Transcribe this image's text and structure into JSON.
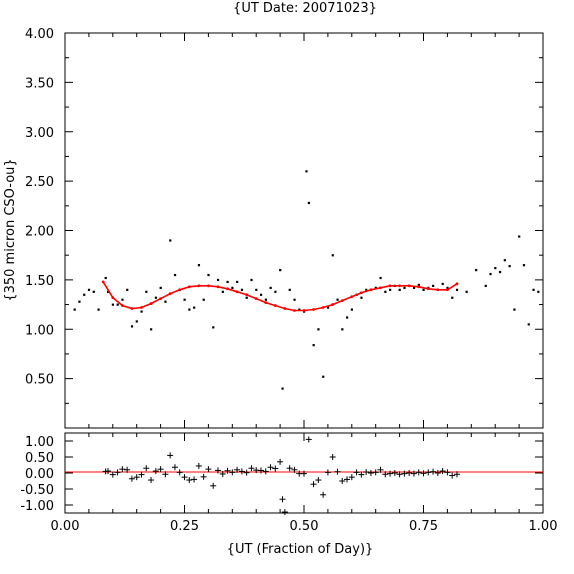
{
  "chart_data": [
    {
      "type": "scatter",
      "panel": "main",
      "title": "{UT Date: 20071023}",
      "ylabel": "{350 micron CSO-ou}",
      "xlim": [
        0,
        1
      ],
      "ylim": [
        0,
        4
      ],
      "yticks": [
        "0.50",
        "1.00",
        "1.50",
        "2.00",
        "2.50",
        "3.00",
        "3.50",
        "4.00"
      ],
      "grid": false,
      "series": [
        {
          "color": "#000000",
          "marker": "dot",
          "x": [
            0.02,
            0.03,
            0.04,
            0.05,
            0.06,
            0.07,
            0.085,
            0.09,
            0.1,
            0.11,
            0.12,
            0.13,
            0.14,
            0.15,
            0.16,
            0.17,
            0.18,
            0.19,
            0.2,
            0.21,
            0.22,
            0.23,
            0.24,
            0.25,
            0.26,
            0.27,
            0.28,
            0.29,
            0.3,
            0.31,
            0.32,
            0.33,
            0.34,
            0.35,
            0.36,
            0.37,
            0.38,
            0.39,
            0.4,
            0.41,
            0.42,
            0.43,
            0.44,
            0.45,
            0.455,
            0.47,
            0.48,
            0.49,
            0.5,
            0.505,
            0.51,
            0.52,
            0.53,
            0.54,
            0.55,
            0.56,
            0.57,
            0.58,
            0.59,
            0.6,
            0.61,
            0.62,
            0.63,
            0.64,
            0.65,
            0.66,
            0.67,
            0.68,
            0.69,
            0.7,
            0.71,
            0.72,
            0.73,
            0.74,
            0.75,
            0.76,
            0.77,
            0.78,
            0.79,
            0.8,
            0.81,
            0.82,
            0.84,
            0.86,
            0.88,
            0.89,
            0.9,
            0.91,
            0.92,
            0.93,
            0.94,
            0.95,
            0.96,
            0.97,
            0.98,
            0.99
          ],
          "y": [
            1.2,
            1.28,
            1.35,
            1.4,
            1.38,
            1.2,
            1.52,
            1.38,
            1.25,
            1.25,
            1.3,
            1.4,
            1.03,
            1.08,
            1.18,
            1.38,
            1.0,
            1.32,
            1.42,
            1.28,
            1.9,
            1.55,
            1.4,
            1.3,
            1.2,
            1.22,
            1.65,
            1.3,
            1.55,
            1.02,
            1.5,
            1.38,
            1.48,
            1.42,
            1.48,
            1.4,
            1.32,
            1.5,
            1.4,
            1.35,
            1.3,
            1.42,
            1.38,
            1.6,
            0.4,
            1.4,
            1.3,
            1.2,
            1.18,
            2.6,
            2.28,
            0.84,
            1.0,
            0.52,
            1.22,
            1.75,
            1.3,
            1.0,
            1.12,
            1.2,
            1.35,
            1.32,
            1.4,
            1.4,
            1.42,
            1.52,
            1.38,
            1.4,
            1.44,
            1.4,
            1.42,
            1.44,
            1.42,
            1.45,
            1.4,
            1.42,
            1.44,
            1.4,
            1.46,
            1.42,
            1.32,
            1.4,
            1.38,
            1.6,
            1.44,
            1.56,
            1.62,
            1.58,
            1.7,
            1.64,
            1.2,
            1.94,
            1.65,
            1.05,
            1.4,
            1.38
          ]
        },
        {
          "color": "#ff0000",
          "marker": "dot-line",
          "x": [
            0.08,
            0.1,
            0.12,
            0.14,
            0.16,
            0.18,
            0.2,
            0.22,
            0.24,
            0.26,
            0.28,
            0.3,
            0.32,
            0.34,
            0.36,
            0.38,
            0.4,
            0.42,
            0.44,
            0.46,
            0.48,
            0.5,
            0.52,
            0.54,
            0.56,
            0.58,
            0.6,
            0.62,
            0.64,
            0.66,
            0.68,
            0.7,
            0.72,
            0.74,
            0.76,
            0.78,
            0.8,
            0.82
          ],
          "y": [
            1.48,
            1.32,
            1.24,
            1.21,
            1.22,
            1.26,
            1.31,
            1.36,
            1.4,
            1.43,
            1.44,
            1.44,
            1.43,
            1.41,
            1.38,
            1.35,
            1.31,
            1.27,
            1.24,
            1.21,
            1.19,
            1.19,
            1.2,
            1.22,
            1.25,
            1.29,
            1.33,
            1.37,
            1.4,
            1.42,
            1.44,
            1.44,
            1.44,
            1.43,
            1.41,
            1.4,
            1.4,
            1.46
          ]
        }
      ]
    },
    {
      "type": "scatter",
      "panel": "residuals",
      "xlabel": "{UT (Fraction of Day)}",
      "xlim": [
        0,
        1
      ],
      "ylim": [
        -1.25,
        1.25
      ],
      "xticks": [
        "0.00",
        "0.25",
        "0.50",
        "0.75",
        "1.00"
      ],
      "yticks": [
        "-1.00",
        "-0.50",
        "0.00",
        "0.50",
        "1.00"
      ],
      "zero_line_color": "#ff0000",
      "grid": false,
      "series": [
        {
          "color": "#000000",
          "marker": "plus",
          "x": [
            0.085,
            0.09,
            0.1,
            0.11,
            0.12,
            0.13,
            0.14,
            0.15,
            0.16,
            0.17,
            0.18,
            0.19,
            0.2,
            0.21,
            0.22,
            0.23,
            0.24,
            0.25,
            0.26,
            0.27,
            0.28,
            0.29,
            0.3,
            0.31,
            0.32,
            0.33,
            0.34,
            0.35,
            0.36,
            0.37,
            0.38,
            0.39,
            0.4,
            0.41,
            0.42,
            0.43,
            0.44,
            0.45,
            0.455,
            0.46,
            0.47,
            0.48,
            0.49,
            0.5,
            0.51,
            0.52,
            0.53,
            0.54,
            0.55,
            0.56,
            0.57,
            0.58,
            0.59,
            0.6,
            0.61,
            0.62,
            0.63,
            0.64,
            0.65,
            0.66,
            0.67,
            0.68,
            0.69,
            0.7,
            0.71,
            0.72,
            0.73,
            0.74,
            0.75,
            0.76,
            0.77,
            0.78,
            0.79,
            0.8,
            0.81,
            0.82
          ],
          "y": [
            0.05,
            0.06,
            -0.05,
            0.02,
            0.12,
            0.1,
            -0.18,
            -0.13,
            -0.05,
            0.15,
            -0.22,
            0.06,
            0.12,
            -0.04,
            0.55,
            0.18,
            0.02,
            -0.13,
            -0.22,
            -0.2,
            0.22,
            -0.12,
            0.12,
            -0.4,
            0.08,
            -0.03,
            0.07,
            0.02,
            0.1,
            0.05,
            0.01,
            0.15,
            0.09,
            0.08,
            0.05,
            0.18,
            0.14,
            0.35,
            -0.82,
            -1.22,
            0.15,
            0.1,
            -0.02,
            -0.02,
            1.05,
            -0.35,
            -0.22,
            -0.68,
            0.02,
            0.5,
            0.04,
            -0.25,
            -0.2,
            -0.13,
            0.02,
            -0.05,
            0.03,
            0.0,
            0.02,
            0.1,
            -0.04,
            -0.02,
            0.0,
            -0.04,
            -0.02,
            0.0,
            -0.02,
            0.02,
            -0.01,
            0.02,
            0.04,
            0.0,
            0.06,
            0.02,
            -0.08,
            -0.04
          ]
        }
      ]
    }
  ]
}
